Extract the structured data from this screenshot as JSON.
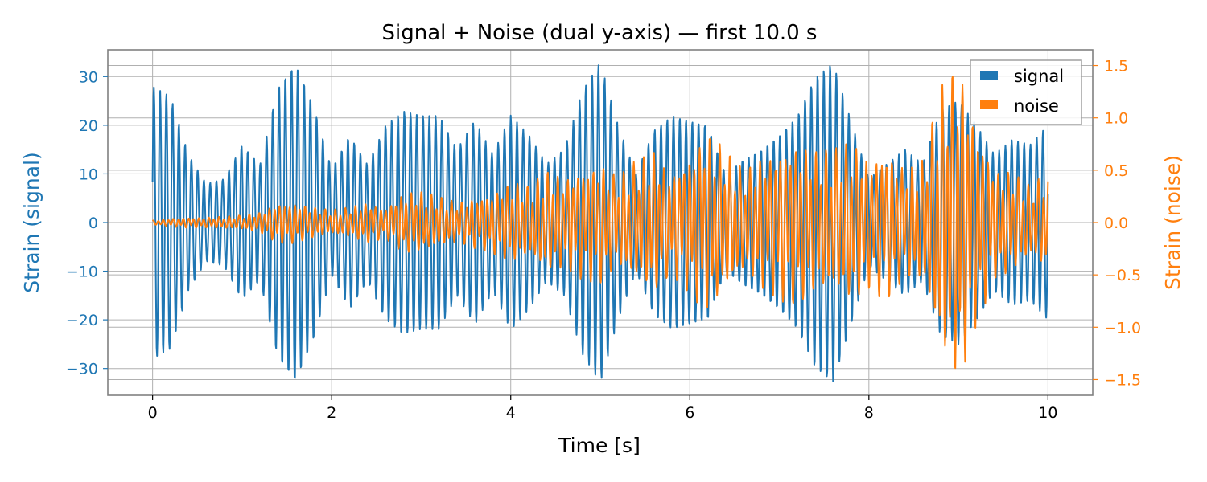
{
  "chart_data": {
    "type": "line",
    "title": "Signal + Noise (dual y-axis) — first 10.0 s",
    "xlabel": "Time [s]",
    "xlim": [
      -0.5,
      10.5
    ],
    "x_ticks": [
      0,
      2,
      4,
      6,
      8,
      10
    ],
    "x_tick_labels": [
      "0",
      "2",
      "4",
      "6",
      "8",
      "10"
    ],
    "y_left": {
      "label": "Strain (signal)",
      "lim": [
        -35.5,
        35.5
      ],
      "ticks": [
        -30,
        -20,
        -10,
        0,
        10,
        20,
        30
      ],
      "tick_labels": [
        "−30",
        "−20",
        "−10",
        "0",
        "10",
        "20",
        "30"
      ],
      "color": "#1f77b4"
    },
    "y_right": {
      "label": "Strain (noise)",
      "lim": [
        -1.65,
        1.65
      ],
      "ticks": [
        -1.5,
        -1.0,
        -0.5,
        0.0,
        0.5,
        1.0,
        1.5
      ],
      "tick_labels": [
        "−1.5",
        "−1.0",
        "−0.5",
        "0.0",
        "0.5",
        "1.0",
        "1.5"
      ],
      "color": "#ff7f0e"
    },
    "grid": true,
    "legend": {
      "position": "top-right"
    },
    "series": [
      {
        "name": "signal",
        "axis": "left",
        "color": "#1f77b4",
        "x": [
          0,
          0.2,
          0.4,
          0.6,
          0.8,
          1.0,
          1.2,
          1.4,
          1.6,
          1.8,
          2.0,
          2.2,
          2.4,
          2.6,
          2.8,
          3.0,
          3.2,
          3.4,
          3.6,
          3.8,
          4.0,
          4.2,
          4.4,
          4.6,
          4.8,
          5.0,
          5.2,
          5.4,
          5.6,
          5.8,
          6.0,
          6.2,
          6.4,
          6.6,
          6.8,
          7.0,
          7.2,
          7.4,
          7.6,
          7.8,
          8.0,
          8.2,
          8.4,
          8.6,
          8.8,
          9.0,
          9.2,
          9.4,
          9.6,
          9.8,
          10.0
        ],
        "envelope": [
          28,
          26,
          14,
          8,
          9,
          16,
          12,
          28,
          33,
          24,
          11,
          18,
          12,
          20,
          23,
          22,
          22,
          15,
          21,
          14,
          22,
          18,
          12,
          15,
          27,
          33,
          20,
          10,
          19,
          22,
          21,
          20,
          10,
          13,
          15,
          18,
          22,
          30,
          33,
          21,
          9,
          12,
          15,
          12,
          23,
          25,
          20,
          14,
          17,
          16,
          20
        ]
      },
      {
        "name": "noise",
        "axis": "right",
        "color": "#ff7f0e",
        "x": [
          0,
          0.2,
          0.4,
          0.6,
          0.8,
          1.0,
          1.2,
          1.4,
          1.6,
          1.8,
          2.0,
          2.2,
          2.4,
          2.6,
          2.8,
          3.0,
          3.2,
          3.4,
          3.6,
          3.8,
          4.0,
          4.2,
          4.4,
          4.6,
          4.8,
          5.0,
          5.2,
          5.4,
          5.6,
          5.8,
          6.0,
          6.2,
          6.4,
          6.6,
          6.8,
          7.0,
          7.2,
          7.4,
          7.6,
          7.8,
          8.0,
          8.2,
          8.4,
          8.6,
          8.8,
          9.0,
          9.2,
          9.4,
          9.6,
          9.8,
          10.0
        ],
        "envelope": [
          0.02,
          0.04,
          0.05,
          0.05,
          0.06,
          0.07,
          0.1,
          0.2,
          0.2,
          0.15,
          0.12,
          0.15,
          0.2,
          0.15,
          0.3,
          0.3,
          0.25,
          0.2,
          0.25,
          0.3,
          0.4,
          0.35,
          0.5,
          0.45,
          0.55,
          0.6,
          0.45,
          0.6,
          0.7,
          0.5,
          0.7,
          0.9,
          0.7,
          0.5,
          0.65,
          0.75,
          0.8,
          0.7,
          0.7,
          0.8,
          0.65,
          0.75,
          0.55,
          0.6,
          1.3,
          1.6,
          1.0,
          0.55,
          0.5,
          0.35,
          0.5
        ]
      }
    ]
  }
}
